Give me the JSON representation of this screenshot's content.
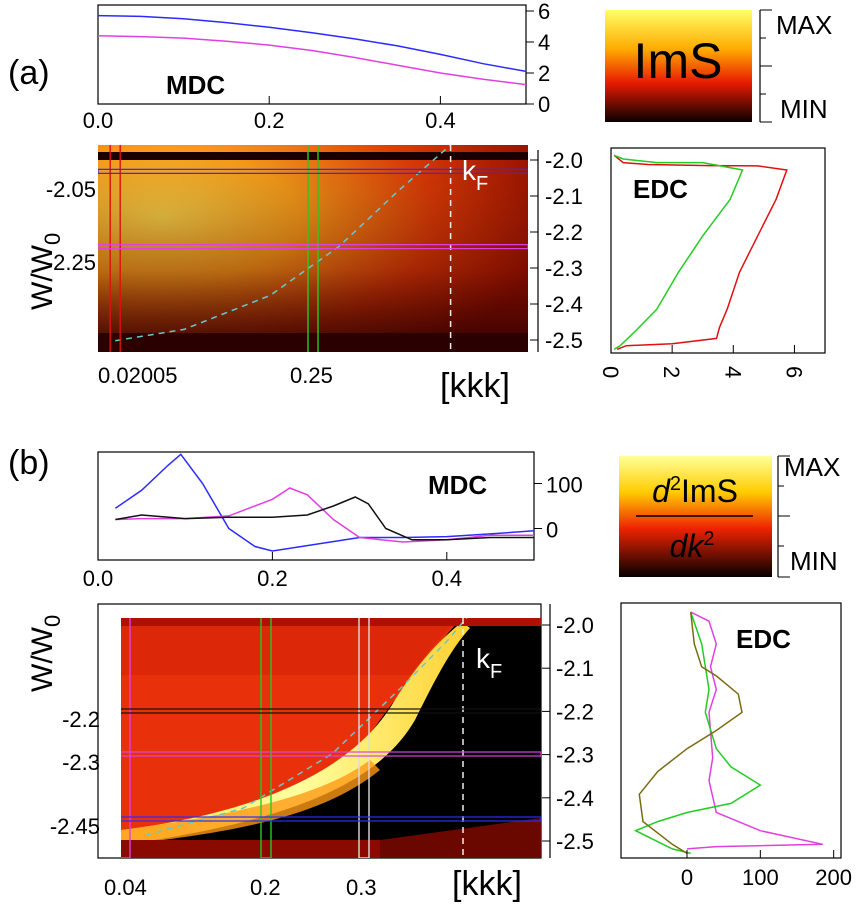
{
  "figure": {
    "panel_a": {
      "label": "(a)",
      "mdc_label": "MDC",
      "edc_label": "EDC",
      "kf_label": "k",
      "kf_sub": "F",
      "colorbar": {
        "title": "ImS",
        "max_label": "MAX",
        "min_label": "MIN"
      },
      "heatmap": {
        "ylabel": "W/W",
        "ylabel_sub": "0",
        "xlabel": "[kkk]",
        "left_y_ticks": [
          "-2.05",
          "-2.25"
        ],
        "bottom_x_ticks": [
          "0.02005",
          "0.25"
        ],
        "right_y_ticks": [
          "-2.0",
          "-2.1",
          "-2.2",
          "-2.3",
          "-2.4",
          "-2.5"
        ]
      }
    },
    "panel_b": {
      "label": "(b)",
      "mdc_label": "MDC",
      "edc_label": "EDC",
      "kf_label": "k",
      "kf_sub": "F",
      "colorbar": {
        "num": "d",
        "num_sup": "2",
        "num_rest": "ImS",
        "den": "dk",
        "den_sup": "2",
        "max_label": "MAX",
        "min_label": "MIN"
      },
      "heatmap": {
        "ylabel": "W/W",
        "ylabel_sub": "0",
        "xlabel": "[kkk]",
        "left_y_ticks": [
          "-2.2",
          "-2.3",
          "-2.45"
        ],
        "bottom_x_ticks": [
          "0.04",
          "0.2",
          "0.3"
        ],
        "right_y_ticks": [
          "-2.0",
          "-2.1",
          "-2.2",
          "-2.3",
          "-2.4",
          "-2.5"
        ]
      }
    },
    "colors": {
      "blue": "#2b2bff",
      "magenta": "#e040e0",
      "red": "#e01010",
      "green": "#22cc22",
      "black": "#111111",
      "olive": "#7a6a10",
      "cyan": "#6cc8c8"
    }
  },
  "chart_data": [
    {
      "type": "line",
      "title": "MDC",
      "panel": "a",
      "xlim": [
        0,
        0.5
      ],
      "ylim": [
        0,
        6
      ],
      "x_ticks": [
        0.0,
        0.2,
        0.4
      ],
      "x_tick_labels": [
        "0.0",
        "0.2",
        "0.4"
      ],
      "y_ticks": [
        0,
        2,
        4,
        6
      ],
      "y_tick_labels": [
        "0",
        "2",
        "4",
        "6"
      ],
      "series": [
        {
          "color": "#2b2bff",
          "x": [
            0,
            0.05,
            0.1,
            0.15,
            0.2,
            0.25,
            0.3,
            0.35,
            0.4,
            0.45,
            0.5
          ],
          "y": [
            5.7,
            5.65,
            5.5,
            5.25,
            4.95,
            4.6,
            4.2,
            3.75,
            3.2,
            2.6,
            2.1
          ]
        },
        {
          "color": "#e040e0",
          "x": [
            0,
            0.05,
            0.1,
            0.15,
            0.2,
            0.25,
            0.3,
            0.35,
            0.4,
            0.45,
            0.5
          ],
          "y": [
            4.4,
            4.35,
            4.25,
            4.05,
            3.8,
            3.45,
            3.0,
            2.5,
            2.0,
            1.6,
            1.25
          ]
        }
      ]
    },
    {
      "type": "line",
      "title": "EDC",
      "panel": "a",
      "xlim": [
        0,
        7
      ],
      "ylim": [
        -2.52,
        -1.96
      ],
      "x_ticks": [
        0,
        2,
        4,
        6
      ],
      "x_tick_labels": [
        "0",
        "2",
        "4",
        "6"
      ],
      "series": [
        {
          "color": "#e01010",
          "x": [
            0.1,
            0.4,
            1.2,
            3.2,
            4.8,
            5.75,
            5.4,
            4.8,
            4.2,
            3.8,
            3.55,
            3.45,
            2.0,
            0.5,
            0.2
          ],
          "y": [
            -1.98,
            -2.0,
            -2.005,
            -2.008,
            -2.009,
            -2.02,
            -2.1,
            -2.2,
            -2.3,
            -2.4,
            -2.45,
            -2.48,
            -2.495,
            -2.5,
            -2.51
          ]
        },
        {
          "color": "#22cc22",
          "x": [
            0.1,
            0.4,
            1.5,
            3.0,
            4.3,
            3.9,
            3.0,
            2.2,
            1.5,
            0.8,
            0.3,
            0.1
          ],
          "y": [
            -1.98,
            -1.99,
            -2.0,
            -2.0,
            -2.02,
            -2.1,
            -2.2,
            -2.3,
            -2.4,
            -2.46,
            -2.5,
            -2.51
          ]
        }
      ]
    },
    {
      "type": "line",
      "title": "MDC",
      "panel": "b",
      "xlim": [
        0,
        0.5
      ],
      "ylim": [
        -70,
        170
      ],
      "x_ticks": [
        0.0,
        0.2,
        0.4
      ],
      "x_tick_labels": [
        "0.0",
        "0.2",
        "0.4"
      ],
      "y_ticks": [
        0,
        100
      ],
      "y_tick_labels": [
        "0",
        "100"
      ],
      "series": [
        {
          "color": "#2b2bff",
          "x": [
            0.02,
            0.05,
            0.08,
            0.095,
            0.12,
            0.15,
            0.18,
            0.2,
            0.25,
            0.3,
            0.35,
            0.4,
            0.45,
            0.5
          ],
          "y": [
            45,
            85,
            140,
            165,
            100,
            0,
            -40,
            -50,
            -35,
            -20,
            -20,
            -18,
            -12,
            -5
          ]
        },
        {
          "color": "#e040e0",
          "x": [
            0.02,
            0.05,
            0.1,
            0.15,
            0.2,
            0.22,
            0.24,
            0.27,
            0.3,
            0.35,
            0.4,
            0.45,
            0.5
          ],
          "y": [
            20,
            22,
            22,
            28,
            65,
            90,
            75,
            20,
            -20,
            -30,
            -25,
            -15,
            -15
          ]
        },
        {
          "color": "#111111",
          "x": [
            0.02,
            0.05,
            0.1,
            0.15,
            0.2,
            0.24,
            0.27,
            0.295,
            0.31,
            0.33,
            0.36,
            0.4,
            0.45,
            0.5
          ],
          "y": [
            20,
            30,
            22,
            25,
            25,
            30,
            50,
            70,
            55,
            0,
            -25,
            -25,
            -20,
            -20
          ]
        }
      ]
    },
    {
      "type": "line",
      "title": "EDC",
      "panel": "b",
      "xlim": [
        -90,
        210
      ],
      "ylim": [
        -2.52,
        -1.96
      ],
      "x_ticks": [
        0,
        100,
        200
      ],
      "x_tick_labels": [
        "0",
        "100",
        "200"
      ],
      "series": [
        {
          "color": "#e040e0",
          "x": [
            5,
            30,
            40,
            32,
            40,
            30,
            35,
            30,
            40,
            100,
            185,
            40,
            0
          ],
          "y": [
            -1.98,
            -2.0,
            -2.05,
            -2.1,
            -2.15,
            -2.2,
            -2.3,
            -2.35,
            -2.42,
            -2.46,
            -2.49,
            -2.495,
            -2.5
          ]
        },
        {
          "color": "#22cc22",
          "x": [
            5,
            20,
            30,
            25,
            40,
            60,
            80,
            100,
            60,
            0,
            -40,
            -70,
            -20,
            5
          ],
          "y": [
            -1.98,
            -2.05,
            -2.15,
            -2.2,
            -2.28,
            -2.32,
            -2.34,
            -2.36,
            -2.4,
            -2.42,
            -2.44,
            -2.46,
            -2.5,
            -2.51
          ]
        },
        {
          "color": "#7a6a10",
          "x": [
            5,
            10,
            20,
            40,
            70,
            75,
            40,
            0,
            -40,
            -65,
            -60,
            -20,
            0
          ],
          "y": [
            -1.98,
            -2.05,
            -2.1,
            -2.12,
            -2.16,
            -2.2,
            -2.24,
            -2.28,
            -2.33,
            -2.38,
            -2.44,
            -2.49,
            -2.51
          ]
        }
      ]
    },
    {
      "type": "heatmap",
      "title": "",
      "panel": "a",
      "xlim": [
        0,
        0.5
      ],
      "ylim": [
        -2.53,
        -1.98
      ],
      "markers": {
        "vertical_boxes": [
          {
            "color": "#e01010",
            "k": 0.02
          },
          {
            "color": "#22cc22",
            "k": 0.25
          }
        ],
        "horizontal_lines": [
          {
            "color": "#2b2bff",
            "w": -2.05
          },
          {
            "color": "#e040e0",
            "w": -2.25
          }
        ],
        "kf_k": 0.41,
        "dispersion": {
          "color": "#6cc8c8",
          "k": [
            0.02,
            0.1,
            0.2,
            0.28,
            0.35,
            0.41
          ],
          "w": [
            -2.5,
            -2.47,
            -2.38,
            -2.25,
            -2.1,
            -1.98
          ]
        }
      }
    },
    {
      "type": "heatmap",
      "title": "",
      "panel": "b",
      "xlim": [
        0,
        0.45
      ],
      "ylim": [
        -2.53,
        -1.97
      ],
      "markers": {
        "vertical_boxes": [
          {
            "color": "#e040e0",
            "k": 0.04
          },
          {
            "color": "#22cc22",
            "k": 0.2
          },
          {
            "color": "#dddddd",
            "k": 0.3
          }
        ],
        "horizontal_lines": [
          {
            "color": "#111111",
            "w": -2.2
          },
          {
            "color": "#e040e0",
            "w": -2.3
          },
          {
            "color": "#2b2bff",
            "w": -2.45
          }
        ],
        "kf_k": 0.41,
        "dispersion": {
          "color": "#6cc8c8",
          "k": [
            0.04,
            0.15,
            0.25,
            0.33,
            0.38,
            0.41
          ],
          "w": [
            -2.48,
            -2.42,
            -2.3,
            -2.15,
            -2.05,
            -1.98
          ]
        }
      }
    }
  ]
}
